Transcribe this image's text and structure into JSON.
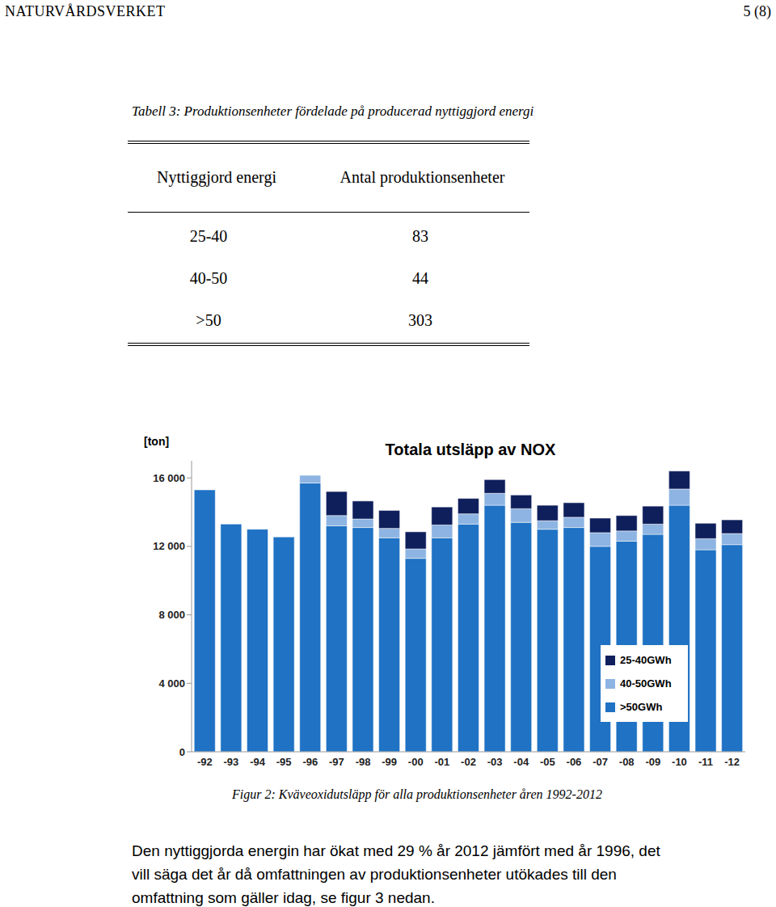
{
  "header": {
    "left": "NATURVÅRDSVERKET",
    "right": "5 (8)"
  },
  "table": {
    "title": "Tabell 3: Produktionsenheter fördelade på producerad nyttiggjord energi",
    "columns": [
      "Nyttiggjord energi",
      "Antal produktionsenheter"
    ],
    "rows": [
      [
        "25-40",
        83
      ],
      [
        "40-50",
        44
      ],
      [
        ">50",
        303
      ]
    ]
  },
  "chart_data": {
    "type": "bar",
    "title": "Totala utsläpp av NOX",
    "y_label": "[ton]",
    "stacked": true,
    "legend": "lower right",
    "categories": [
      "-92",
      "-93",
      "-94",
      "-95",
      "-96",
      "-97",
      "-98",
      "-99",
      "-00",
      "-01",
      "-02",
      "-03",
      "-04",
      "-05",
      "-06",
      "-07",
      "-08",
      "-09",
      "-10",
      "-11",
      "-12"
    ],
    "series": [
      {
        "name": ">50GWh",
        "color": "#1f72c4",
        "values": [
          15300,
          13300,
          13000,
          12550,
          15700,
          13200,
          13100,
          12500,
          11300,
          12500,
          13300,
          14400,
          13400,
          13000,
          13100,
          12000,
          12300,
          12700,
          14400,
          11800,
          12100
        ]
      },
      {
        "name": "40-50GWh",
        "color": "#8db4e2",
        "values": [
          null,
          null,
          null,
          null,
          450,
          600,
          500,
          550,
          550,
          750,
          600,
          700,
          800,
          500,
          600,
          800,
          600,
          600,
          950,
          650,
          650
        ]
      },
      {
        "name": "25-40GWh",
        "color": "#0f1f5c",
        "values": [
          null,
          null,
          null,
          null,
          null,
          1400,
          1050,
          1050,
          1000,
          1050,
          900,
          800,
          800,
          900,
          850,
          850,
          900,
          1050,
          1050,
          900,
          800
        ]
      }
    ],
    "ylim": [
      0,
      17000
    ],
    "yticks": [
      0,
      {
        "value": 4000,
        "label": "4 000"
      },
      {
        "value": 8000,
        "label": "8 000"
      },
      {
        "value": 12000,
        "label": "12 000"
      },
      {
        "value": 16000,
        "label": "16 000"
      }
    ]
  },
  "caption": "Figur 2: Kväveoxidutsläpp för alla produktionsenheter åren 1992-2012",
  "paragraph": [
    "Den nyttiggjorda energin har ökat med 29 % år 2012 jämfört med år 1996, det",
    "vill säga det år då omfattningen av produktionsenheter utökades till den",
    "omfattning som gäller idag, se figur 3 nedan."
  ]
}
